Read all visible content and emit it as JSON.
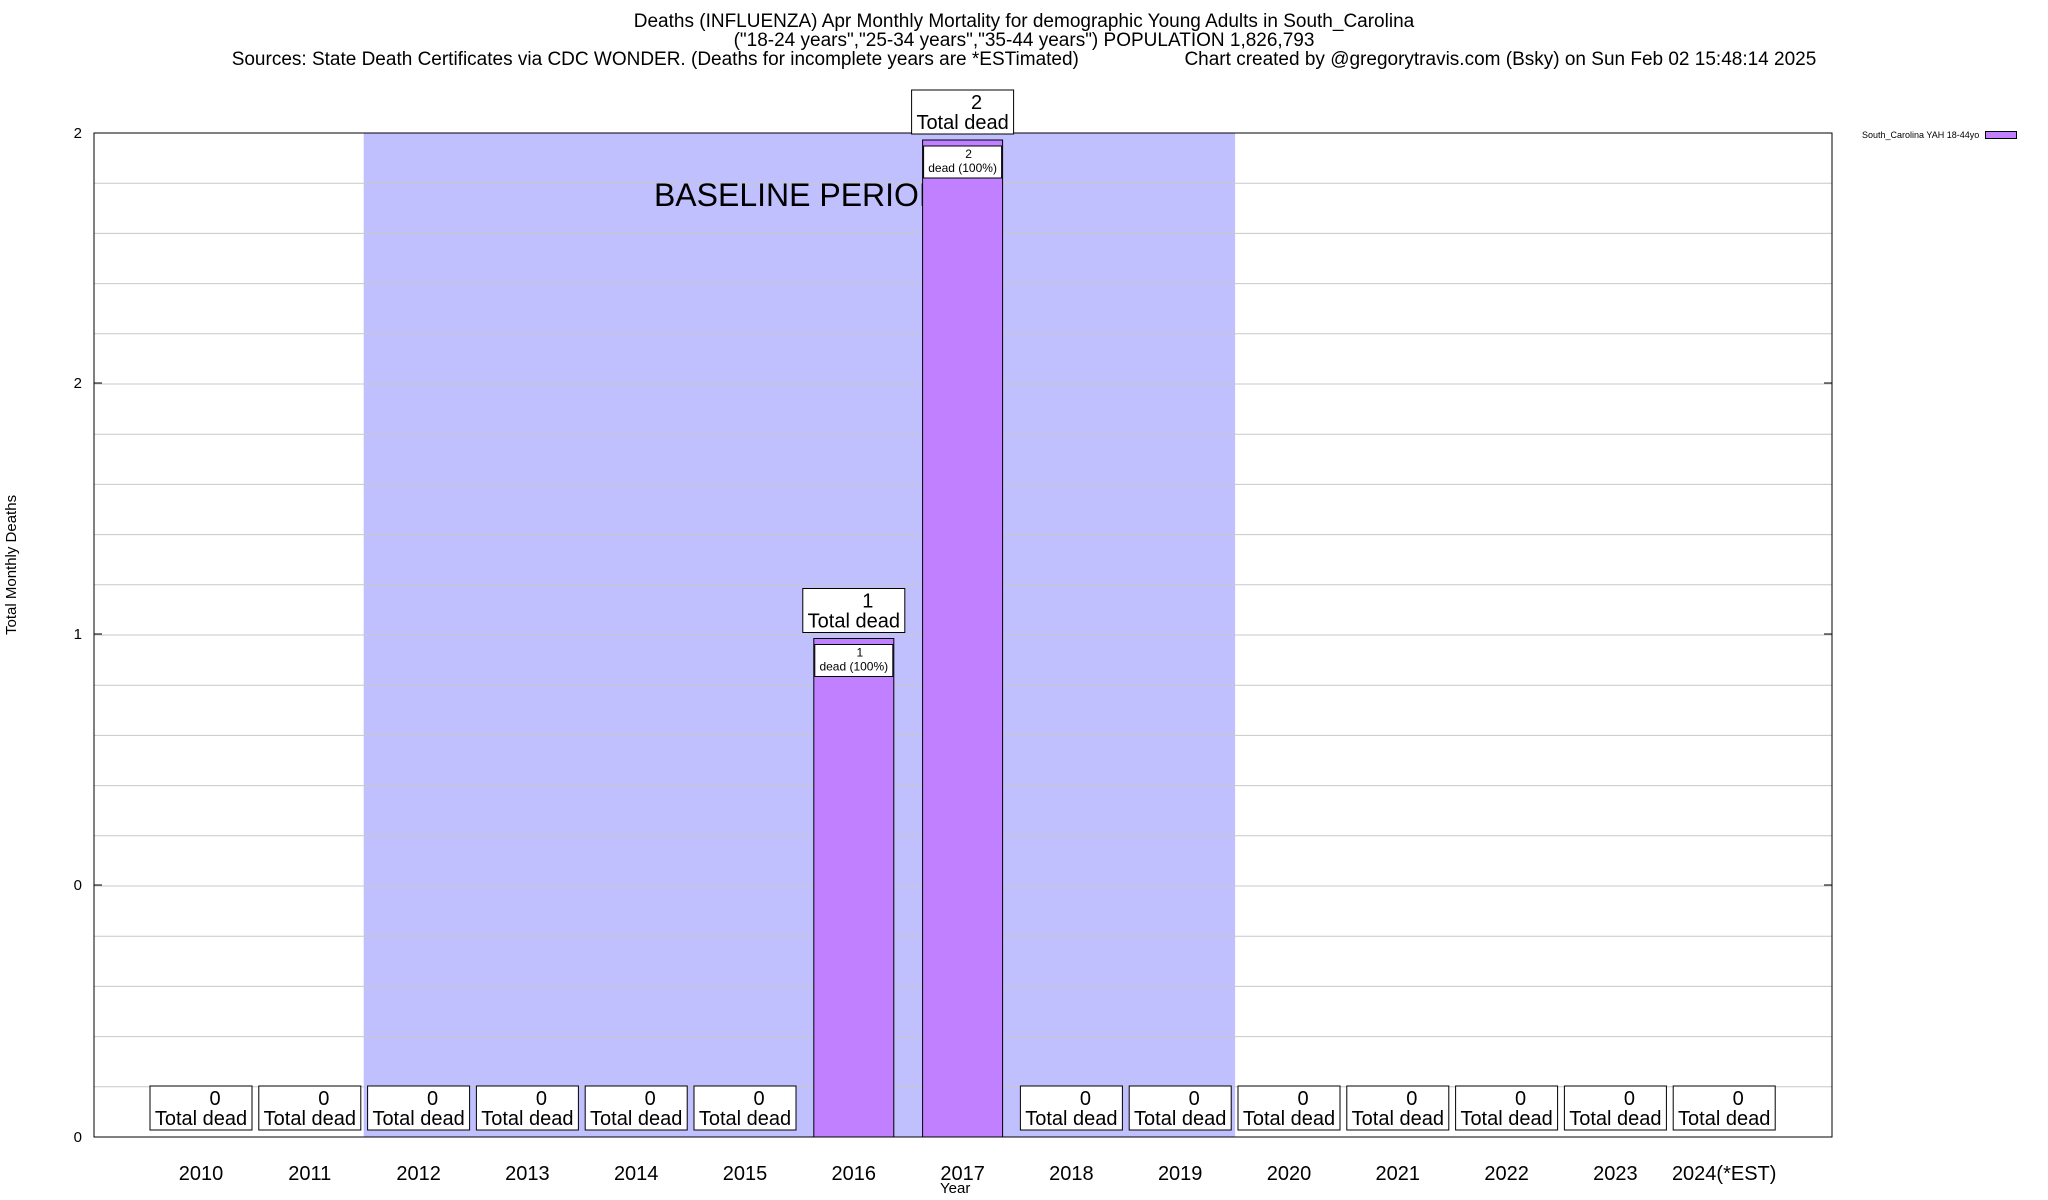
{
  "titles": {
    "line1": "Deaths (INFLUENZA) Apr Monthly Mortality for demographic Young Adults in South_Carolina",
    "line2": "(\"18-24 years\",\"25-34 years\",\"35-44 years\") POPULATION 1,826,793",
    "sources": "Sources: State Death Certificates via CDC WONDER. (Deaths for incomplete years are *ESTimated)",
    "credit": "Chart created by @gregorytravis.com (Bsky) on Sun Feb 02 15:48:14 2025"
  },
  "colors": {
    "bar": "#c080ff",
    "baseline": "#c0c0ff",
    "grid": "#c8c8c8"
  },
  "chart_data": {
    "type": "bar",
    "xlabel": "Year",
    "ylabel": "Total Monthly Deaths",
    "categories": [
      "2010",
      "2011",
      "2012",
      "2013",
      "2014",
      "2015",
      "2016",
      "2017",
      "2018",
      "2019",
      "2020",
      "2021",
      "2022",
      "2023",
      "2024(*EST)"
    ],
    "series": [
      {
        "name": "South_Carolina YAH 18-44yo",
        "values": [
          0,
          0,
          0,
          0,
          0,
          0,
          1,
          2,
          0,
          0,
          0,
          0,
          0,
          0,
          0
        ]
      }
    ],
    "ylim": [
      0,
      2
    ],
    "y_tick_labels": [
      "0",
      "0",
      "1",
      "2",
      "2"
    ],
    "total_label": "Total dead",
    "segment_label_suffix": "dead (100%)",
    "baseline": {
      "label": "BASELINE PERIOD",
      "from": "2012",
      "to": "2019"
    },
    "grid": true,
    "legend": "top-right"
  }
}
